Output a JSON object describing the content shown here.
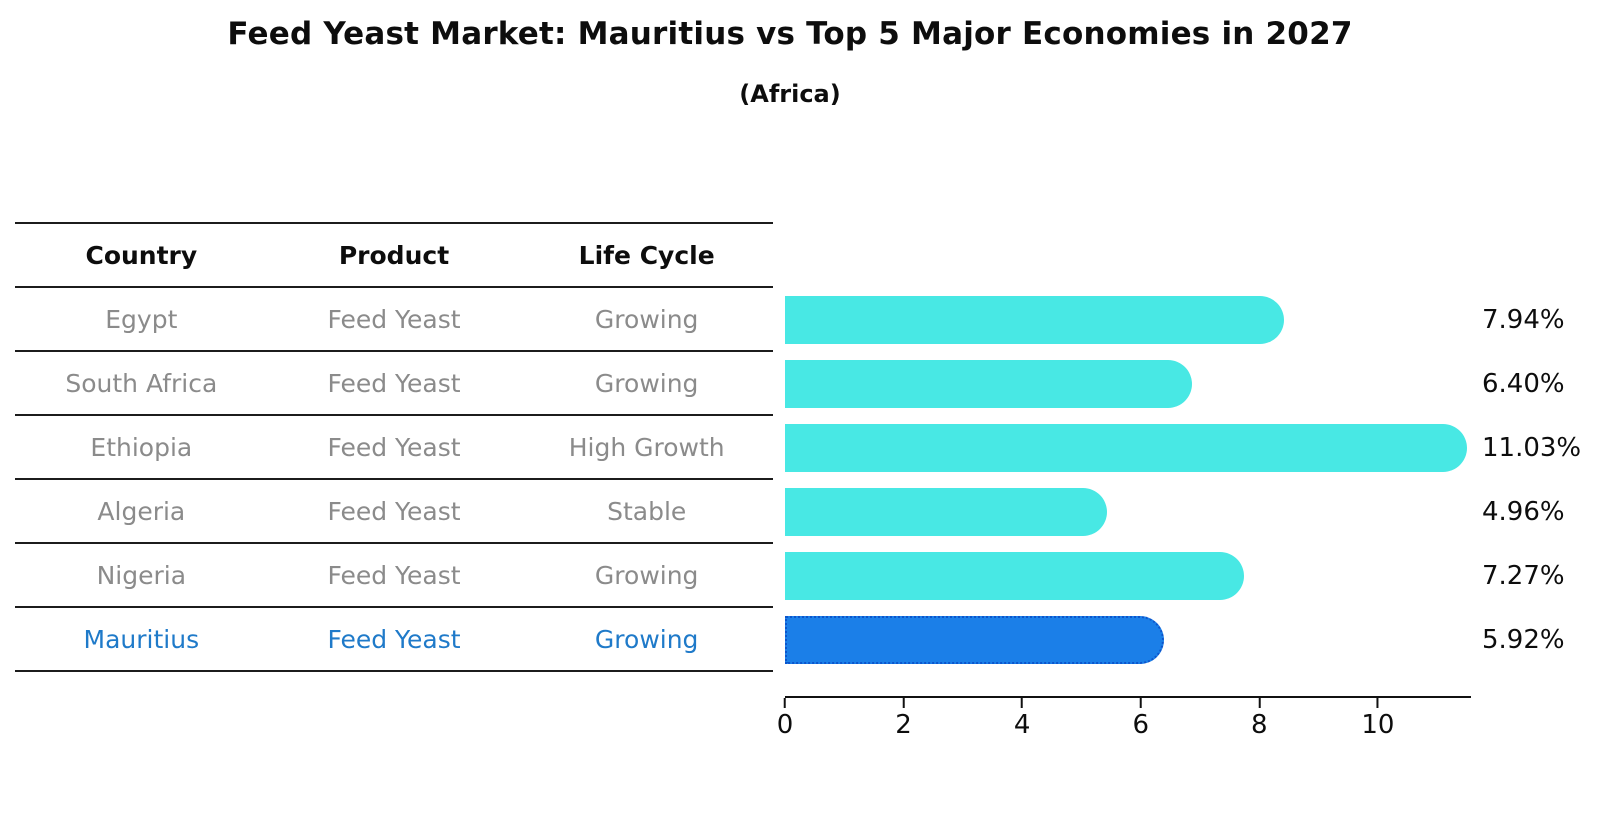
{
  "title": "Feed Yeast Market: Mauritius vs Top 5 Major Economies in 2027",
  "subtitle": "(Africa)",
  "table": {
    "headers": [
      "Country",
      "Product",
      "Life Cycle"
    ],
    "rows": [
      {
        "country": "Egypt",
        "product": "Feed Yeast",
        "life_cycle": "Growing"
      },
      {
        "country": "South Africa",
        "product": "Feed Yeast",
        "life_cycle": "Growing"
      },
      {
        "country": "Ethiopia",
        "product": "Feed Yeast",
        "life_cycle": "High Growth"
      },
      {
        "country": "Algeria",
        "product": "Feed Yeast",
        "life_cycle": "Stable"
      },
      {
        "country": "Nigeria",
        "product": "Feed Yeast",
        "life_cycle": "Growing"
      },
      {
        "country": "Mauritius",
        "product": "Feed Yeast",
        "life_cycle": "Growing"
      }
    ]
  },
  "chart_data": {
    "type": "bar",
    "orientation": "horizontal",
    "title": "Feed Yeast Market: Mauritius vs Top 5 Major Economies in 2027",
    "subtitle": "(Africa)",
    "categories": [
      "Egypt",
      "South Africa",
      "Ethiopia",
      "Algeria",
      "Nigeria",
      "Mauritius"
    ],
    "values": [
      7.94,
      6.4,
      11.03,
      4.96,
      7.27,
      5.92
    ],
    "value_labels": [
      "7.94%",
      "6.40%",
      "11.03%",
      "4.96%",
      "7.27%",
      "5.92%"
    ],
    "xlabel": "",
    "ylabel": "",
    "xlim": [
      0,
      11.57
    ],
    "xticks": [
      0,
      2,
      4,
      6,
      8,
      10
    ],
    "grid": false,
    "legend": false,
    "bar_color": "#48e8e4",
    "highlight_color": "#1b7fe8",
    "highlight_border_color": "#0c55cc",
    "highlight_index": 5,
    "highlight_text_color": "#1f7ac9"
  }
}
